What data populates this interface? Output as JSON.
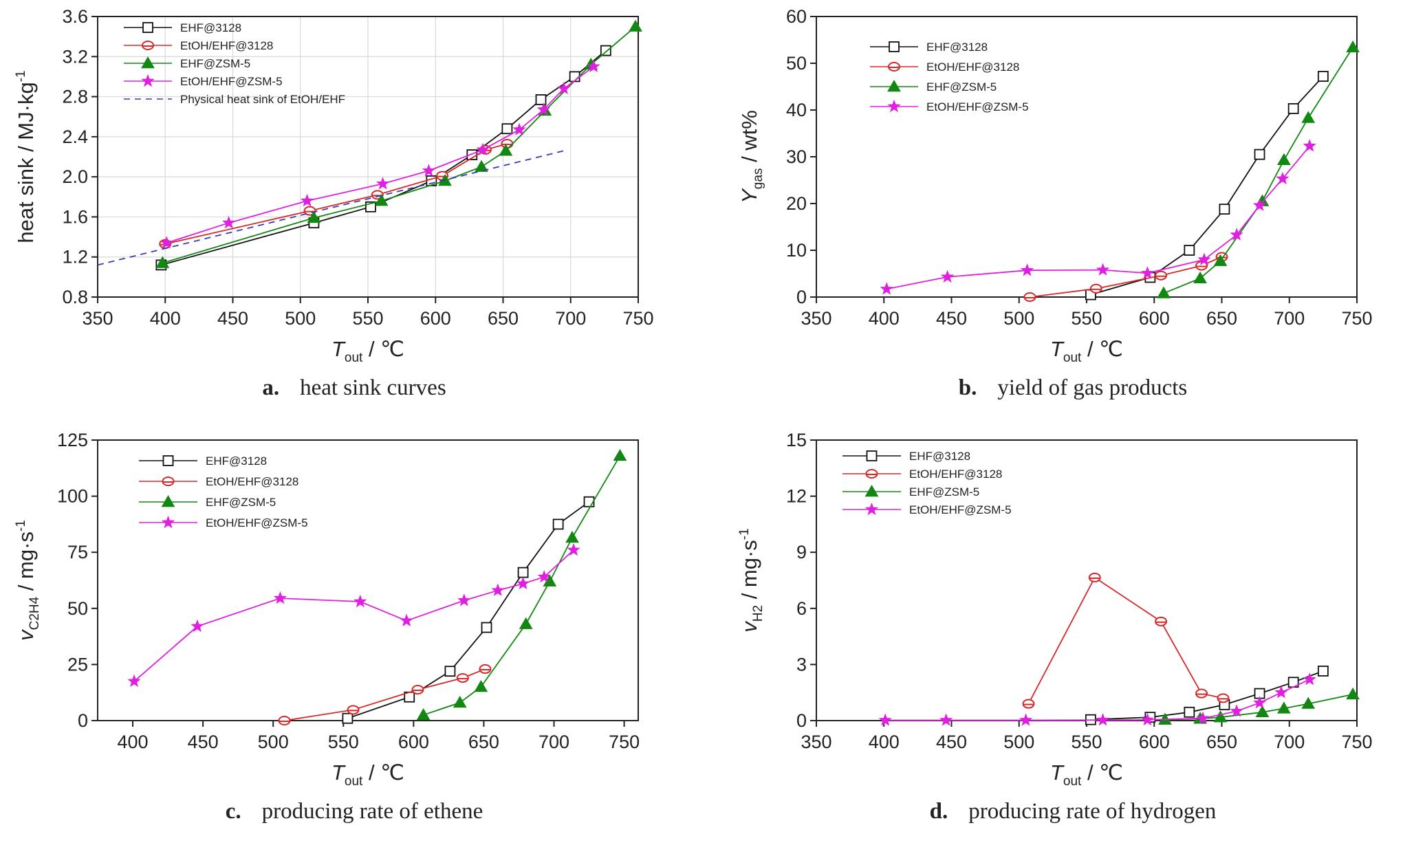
{
  "colors": {
    "EHF@3128": "#111111",
    "EtOH/EHF@3128": "#d62828",
    "EHF@ZSM-5": "#118811",
    "EtOH/EHF@ZSM-5": "#e020e0",
    "physical": "#3a3ab5"
  },
  "chart_data": [
    {
      "id": "a",
      "type": "line",
      "caption_letter": "a.",
      "caption_text": "heat sink curves",
      "ylabel_main": "heat sink / MJ·kg",
      "ylabel_sup": "-1",
      "xlabel_main": "T",
      "xlabel_sub": "out",
      "xlabel_unit": " / ℃",
      "xlim": [
        350,
        750
      ],
      "ylim": [
        0.8,
        3.6
      ],
      "xticks": [
        350,
        400,
        450,
        500,
        550,
        600,
        650,
        700,
        750
      ],
      "yticks": [
        "0.8",
        "1.2",
        "1.6",
        "2.0",
        "2.4",
        "2.8",
        "3.2",
        "3.6"
      ],
      "grid": true,
      "legend_position": "top-left",
      "series": [
        {
          "name": "EHF@3128",
          "marker": "square",
          "x": [
            397,
            510,
            552,
            597,
            627,
            653,
            678,
            703,
            726
          ],
          "y": [
            1.12,
            1.54,
            1.7,
            1.96,
            2.22,
            2.48,
            2.77,
            3.0,
            3.26
          ]
        },
        {
          "name": "EtOH/EHF@3128",
          "marker": "circle",
          "x": [
            400,
            507,
            557,
            605,
            637,
            653
          ],
          "y": [
            1.33,
            1.66,
            1.82,
            2.01,
            2.27,
            2.33
          ]
        },
        {
          "name": "EHF@ZSM-5",
          "marker": "triangle",
          "x": [
            398,
            510,
            560,
            607,
            634,
            652,
            681,
            715,
            748
          ],
          "y": [
            1.14,
            1.59,
            1.76,
            1.96,
            2.1,
            2.26,
            2.66,
            3.12,
            3.5
          ]
        },
        {
          "name": "EtOH/EHF@ZSM-5",
          "marker": "star",
          "x": [
            401,
            447,
            505,
            561,
            595,
            635,
            662,
            680,
            695,
            717
          ],
          "y": [
            1.34,
            1.54,
            1.76,
            1.93,
            2.06,
            2.27,
            2.47,
            2.67,
            2.88,
            3.1
          ]
        },
        {
          "name": "Physical heat sink of EtOH/EHF",
          "marker": "dash",
          "x": [
            350,
            695
          ],
          "y": [
            1.12,
            2.26
          ]
        }
      ]
    },
    {
      "id": "b",
      "type": "line",
      "caption_letter": "b.",
      "caption_text": "yield of gas products",
      "ylabel_main": "Y",
      "ylabel_sub": "gas",
      "ylabel_unit": " / wt%",
      "xlabel_main": "T",
      "xlabel_sub": "out",
      "xlabel_unit": " / ℃",
      "xlim": [
        350,
        750
      ],
      "ylim": [
        0,
        60
      ],
      "xticks": [
        350,
        400,
        450,
        500,
        550,
        600,
        650,
        700,
        750
      ],
      "yticks": [
        "0",
        "10",
        "20",
        "30",
        "40",
        "50",
        "60"
      ],
      "grid": false,
      "legend_position": "top-left",
      "series": [
        {
          "name": "EHF@3128",
          "marker": "square",
          "x": [
            553,
            597,
            626,
            652,
            678,
            703,
            725
          ],
          "y": [
            0.5,
            4.2,
            10.0,
            18.8,
            30.5,
            40.3,
            47.2
          ]
        },
        {
          "name": "EtOH/EHF@3128",
          "marker": "circle",
          "x": [
            508,
            557,
            605,
            635,
            650
          ],
          "y": [
            0,
            1.8,
            4.6,
            6.7,
            8.6
          ]
        },
        {
          "name": "EHF@ZSM-5",
          "marker": "triangle",
          "x": [
            607,
            634,
            649,
            680,
            696,
            714,
            747
          ],
          "y": [
            0.8,
            4.0,
            7.7,
            20.5,
            29.3,
            38.3,
            53.4
          ]
        },
        {
          "name": "EtOH/EHF@ZSM-5",
          "marker": "star",
          "x": [
            402,
            447,
            506,
            562,
            595,
            637,
            661,
            678,
            695,
            715
          ],
          "y": [
            1.7,
            4.3,
            5.7,
            5.8,
            5.1,
            8.0,
            13.3,
            19.6,
            25.3,
            32.3
          ]
        }
      ]
    },
    {
      "id": "c",
      "type": "line",
      "caption_letter": "c.",
      "caption_text": "producing rate of ethene",
      "ylabel_main": "v",
      "ylabel_sub": "C2H4",
      "ylabel_unit": " / mg·s",
      "ylabel_sup": "-1",
      "xlabel_main": "T",
      "xlabel_sub": "out",
      "xlabel_unit": " / ℃",
      "xlim": [
        375,
        760
      ],
      "ylim": [
        0,
        125
      ],
      "xticks": [
        400,
        450,
        500,
        550,
        600,
        650,
        700,
        750
      ],
      "yticks": [
        "0",
        "25",
        "50",
        "75",
        "100",
        "125"
      ],
      "grid": false,
      "legend_position": "top-left",
      "series": [
        {
          "name": "EHF@3128",
          "marker": "square",
          "x": [
            553,
            597,
            626,
            652,
            678,
            703,
            725
          ],
          "y": [
            1,
            10.5,
            22,
            41.5,
            66,
            87.5,
            97.5
          ]
        },
        {
          "name": "EtOH/EHF@3128",
          "marker": "circle",
          "x": [
            508,
            557,
            603,
            635,
            651
          ],
          "y": [
            0,
            4.8,
            13.8,
            19,
            23
          ]
        },
        {
          "name": "EHF@ZSM-5",
          "marker": "triangle",
          "x": [
            607,
            633,
            648,
            680,
            697,
            713,
            747
          ],
          "y": [
            2.5,
            8,
            15,
            43,
            62,
            81.5,
            118
          ]
        },
        {
          "name": "EtOH/EHF@ZSM-5",
          "marker": "star",
          "x": [
            401,
            446,
            505,
            562,
            595,
            636,
            660,
            678,
            693,
            714
          ],
          "y": [
            17.5,
            42,
            54.5,
            53,
            44.5,
            53.5,
            58,
            61,
            64,
            76
          ]
        }
      ]
    },
    {
      "id": "d",
      "type": "line",
      "caption_letter": "d.",
      "caption_text": "producing rate of hydrogen",
      "ylabel_main": "v",
      "ylabel_sub": "H2",
      "ylabel_unit": " / mg·s",
      "ylabel_sup": "-1",
      "xlabel_main": "T",
      "xlabel_sub": "out",
      "xlabel_unit": " / ℃",
      "xlim": [
        350,
        750
      ],
      "ylim": [
        0,
        15
      ],
      "xticks": [
        350,
        400,
        450,
        500,
        550,
        600,
        650,
        700,
        750
      ],
      "yticks": [
        "0",
        "3",
        "6",
        "9",
        "12",
        "15"
      ],
      "grid": false,
      "legend_position": "top-left",
      "series": [
        {
          "name": "EHF@3128",
          "marker": "square",
          "x": [
            553,
            597,
            626,
            652,
            678,
            703,
            725
          ],
          "y": [
            0.05,
            0.18,
            0.45,
            0.85,
            1.45,
            2.05,
            2.65
          ]
        },
        {
          "name": "EtOH/EHF@3128",
          "marker": "circle",
          "x": [
            507,
            556,
            605,
            635,
            651
          ],
          "y": [
            0.9,
            7.65,
            5.3,
            1.45,
            1.2
          ]
        },
        {
          "name": "EHF@ZSM-5",
          "marker": "triangle",
          "x": [
            608,
            634,
            649,
            680,
            696,
            714,
            747
          ],
          "y": [
            0.05,
            0.1,
            0.18,
            0.45,
            0.65,
            0.9,
            1.4
          ]
        },
        {
          "name": "EtOH/EHF@ZSM-5",
          "marker": "star",
          "x": [
            401,
            446,
            505,
            562,
            595,
            636,
            661,
            678,
            694,
            715
          ],
          "y": [
            0.02,
            0.02,
            0.02,
            0.03,
            0.04,
            0.12,
            0.5,
            0.95,
            1.5,
            2.2
          ]
        }
      ]
    }
  ]
}
